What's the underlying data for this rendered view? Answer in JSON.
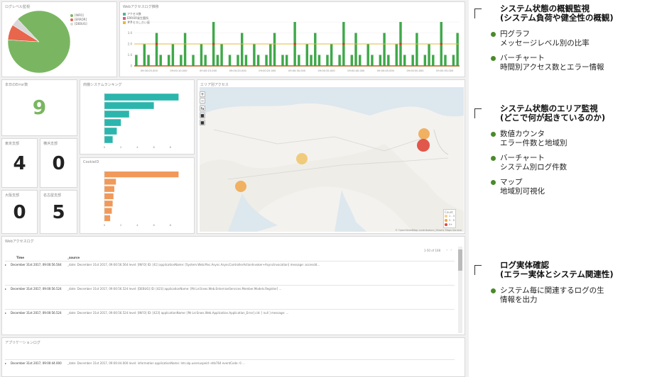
{
  "panels": {
    "pie_title": "ログレベル監視",
    "bar_title": "Webアクセスログ推移",
    "errcount_title": "本日のError数",
    "errcount_value": "9",
    "ranking_title": "商機システムランキング",
    "region_title": "エリア別アクセス",
    "cookie_title": "CookieID",
    "tokyo_title": "東京支部",
    "yokohama_title": "横浜支部",
    "osaka_title": "大阪支部",
    "nagoya_title": "名古屋支部",
    "tokyo_value": "4",
    "yokohama_value": "0",
    "osaka_value": "0",
    "nagoya_value": "5",
    "weblog_title": "Webアクセスログ",
    "applog_title": "アプリケーションログ",
    "pager": "1-50 of 108",
    "col_time": "Time",
    "col_source": "_source",
    "count_label": "Count",
    "map_credit": "© OpenStreetMap contributors | Elastic Maps Service"
  },
  "pie_legend": [
    {
      "label": "[INFO]",
      "color": "#7ab661"
    },
    {
      "label": "[ERROR]",
      "color": "#e7664c"
    },
    {
      "label": "[DEBUG]",
      "color": "#d9d9d9"
    }
  ],
  "bar_legend": [
    {
      "label": "アクセス数",
      "color": "#54b399"
    },
    {
      "label": "ERROR発生箇所",
      "color": "#d36086"
    },
    {
      "label": "アクセスしきい値",
      "color": "#e7b83a"
    }
  ],
  "map_legend": [
    {
      "label": "1 - 3",
      "color": "#f5d08a"
    },
    {
      "label": "3 - 5",
      "color": "#f0a64a"
    },
    {
      "label": "5+",
      "color": "#e0463a"
    }
  ],
  "weblog_rows": [
    {
      "time": "December 31st 2017, 09:00:56.564",
      "source": "_date: December 31st 2017, 09:00:56.564 level: [INFO] ID: [41] applicationName: [System.Web.Mvc.Async.AsyncControllerActionInvoker+AsyncInvocation] message: accessId..."
    },
    {
      "time": "December 31st 2017, 09:00:56.524",
      "source": "_date: December 31st 2017, 09:00:56.524 level: [DEBUG] ID: [423] applicationName: [Mr.LrcSrxes.Web.EnterniseServices.Member.Models.Register] ..."
    },
    {
      "time": "December 31st 2017, 09:00:56.524",
      "source": "_date: December 31st 2017, 09:00:56.524 level: [INFO] ID: [423] applicationName: [Mr.LrcSrxes.Web.Application.Application_Error] cid: [ null ] message: ..."
    }
  ],
  "applog_rows": [
    {
      "time": "December 31st 2017, 09:00:44.000",
      "source": "_date: December 31st 2017, 09:00:44.000 level: information applicationName: Intr.alp.usersuspeid: ehb764 eventCode: 0 ..."
    }
  ],
  "annotations": [
    {
      "title1": "システム状態の概観監視",
      "title2": "(システム負荷や健全性の概観)",
      "bullets": [
        {
          "l1": "円グラフ",
          "l2": "メッセージレベル別の比率"
        },
        {
          "l1": "バーチャート",
          "l2": "時間別アクセス数とエラー情報"
        }
      ]
    },
    {
      "title1": "システム状態のエリア監視",
      "title2": "(どこで何が起きているのか)",
      "bullets": [
        {
          "l1": "数値カウンタ",
          "l2": "エラー件数と地域別"
        },
        {
          "l1": "バーチャート",
          "l2": "システム別ログ件数"
        },
        {
          "l1": "マップ",
          "l2": "地域別可視化"
        }
      ]
    },
    {
      "title1": "ログ実体確認",
      "title2": "(エラー実体とシステム関連性)",
      "bullets": [
        {
          "l1": "システム毎に関連するログの生",
          "l2": "情報を出力"
        }
      ]
    }
  ],
  "chart_data": [
    {
      "type": "pie",
      "title": "ログレベル監視",
      "labels": [
        "[INFO]",
        "[ERROR]",
        "[DEBUG]"
      ],
      "values": [
        88,
        8,
        4
      ],
      "colors": [
        "#7ab661",
        "#e7664c",
        "#d9d9d9"
      ]
    },
    {
      "type": "bar",
      "title": "Webアクセスログ推移",
      "ylim": [
        0,
        4
      ],
      "yticks": [
        "0",
        "1.0",
        "2.0",
        "3.0",
        "4.0"
      ],
      "threshold": 2,
      "xticks": [
        "09:00:05.000",
        "09:00:10.000",
        "09:00:15.000",
        "09:00:20.000",
        "09:00:25.000",
        "09:00:30.000",
        "09:00:35.000",
        "09:00:40.000",
        "09:00:45.000",
        "09:00:50.000",
        "09:00:55.000"
      ],
      "values": [
        1,
        0,
        2,
        1,
        0,
        3,
        1,
        0,
        1,
        2,
        0,
        1,
        3,
        0,
        1,
        0,
        2,
        1,
        0,
        4,
        1,
        2,
        0,
        1,
        0,
        1,
        3,
        1,
        0,
        2,
        1,
        0,
        1,
        2,
        3,
        0,
        1,
        1,
        0,
        4,
        1,
        0,
        2,
        1,
        3,
        1,
        0,
        1,
        2,
        0,
        1,
        4,
        0,
        1,
        3,
        1,
        0,
        2,
        1,
        0,
        1,
        3,
        1,
        0,
        2,
        4,
        1,
        0,
        1,
        3,
        0,
        1,
        2,
        1,
        0,
        4,
        1,
        0,
        1,
        3
      ],
      "error_positions": [
        5,
        19,
        39,
        51,
        65,
        75
      ]
    },
    {
      "type": "bar",
      "title": "商機システムランキング",
      "orientation": "horizontal",
      "values": [
        9,
        6,
        3,
        2,
        1.5,
        1
      ],
      "color": "#2bb5ad",
      "xlim": [
        0,
        10
      ]
    },
    {
      "type": "bar",
      "title": "CookieID",
      "orientation": "horizontal",
      "values": [
        9,
        1.4,
        1.2,
        1.1,
        1,
        0.9,
        0.7
      ],
      "color": "#f0995a",
      "xlim": [
        0,
        10
      ]
    }
  ]
}
